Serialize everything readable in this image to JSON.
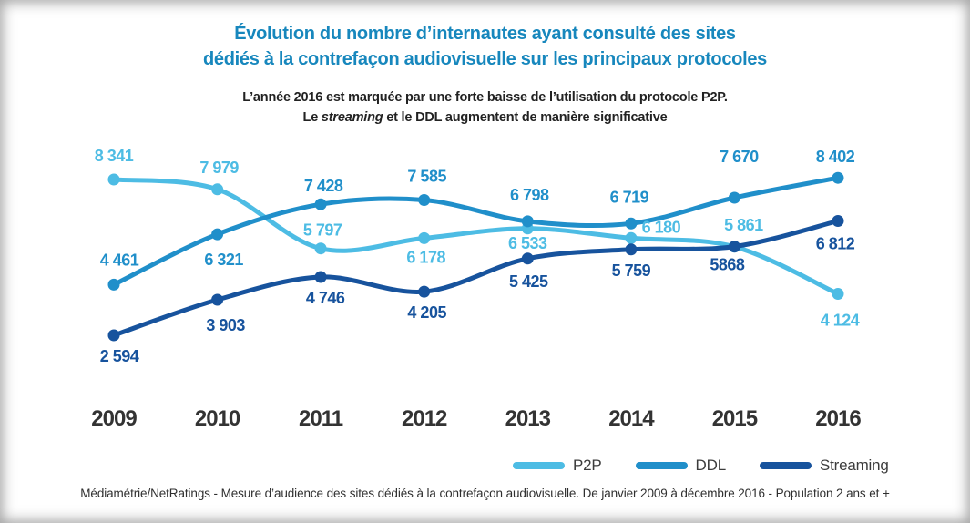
{
  "title": {
    "line1": "Évolution du nombre d’internautes ayant consulté des sites",
    "line2": "dédiés à la contrefaçon audiovisuelle sur les principaux protocoles",
    "color": "#1787bd"
  },
  "subtitle": {
    "line1": "L’année 2016 est marquée par une forte baisse de l’utilisation du protocole P2P.",
    "line2_prefix": "Le ",
    "line2_italic": "streaming",
    "line2_suffix": " et le DDL augmentent de manière significative"
  },
  "footer": "Médiamétrie/NetRatings - Mesure d’audience des sites dédiés à la contrefaçon audiovisuelle. De janvier 2009 à décembre 2016 - Population 2 ans et +",
  "chart_data": {
    "type": "line",
    "title": "Évolution du nombre d’internautes ayant consulté des sites dédiés à la contrefaçon audiovisuelle sur les principaux protocoles",
    "x": [
      "2009",
      "2010",
      "2011",
      "2012",
      "2013",
      "2014",
      "2015",
      "2016"
    ],
    "xlabel": "",
    "ylabel": "",
    "ylim": [
      2594,
      8402
    ],
    "grid": false,
    "legend_position": "bottom-right",
    "series": [
      {
        "name": "P2P",
        "color": "#4dbce4",
        "values": [
          8341,
          7979,
          5797,
          6178,
          6533,
          6180,
          5861,
          4124
        ],
        "labels": [
          "8 341",
          "7 979",
          "5 797",
          "6 178",
          "6 533",
          "6 180",
          "5 861",
          "4 124"
        ],
        "label_offsets": [
          [
            0,
            -26
          ],
          [
            2,
            -24
          ],
          [
            2,
            -20
          ],
          [
            2,
            21
          ],
          [
            0,
            16
          ],
          [
            33,
            -12
          ],
          [
            10,
            -24
          ],
          [
            2,
            29
          ]
        ]
      },
      {
        "name": "DDL",
        "color": "#208fca",
        "values": [
          4461,
          6321,
          7428,
          7585,
          6798,
          6719,
          7670,
          8402
        ],
        "labels": [
          "4 461",
          "6 321",
          "7 428",
          "7 585",
          "6 798",
          "6 719",
          "7 670",
          "8 402"
        ],
        "label_offsets": [
          [
            6,
            -27
          ],
          [
            7,
            28
          ],
          [
            3,
            -20
          ],
          [
            3,
            -26
          ],
          [
            2,
            -29
          ],
          [
            -2,
            -29
          ],
          [
            5,
            -45
          ],
          [
            -3,
            -23
          ]
        ]
      },
      {
        "name": "Streaming",
        "color": "#17539d",
        "values": [
          2594,
          3903,
          4746,
          4205,
          5425,
          5759,
          5868,
          6812
        ],
        "labels": [
          "2 594",
          "3 903",
          "4 746",
          "4 205",
          "5 425",
          "5 759",
          "5868",
          "6 812"
        ],
        "label_offsets": [
          [
            6,
            23
          ],
          [
            9,
            28
          ],
          [
            5,
            23
          ],
          [
            3,
            23
          ],
          [
            1,
            25
          ],
          [
            0,
            23
          ],
          [
            -8,
            20
          ],
          [
            -3,
            25
          ]
        ]
      }
    ]
  }
}
